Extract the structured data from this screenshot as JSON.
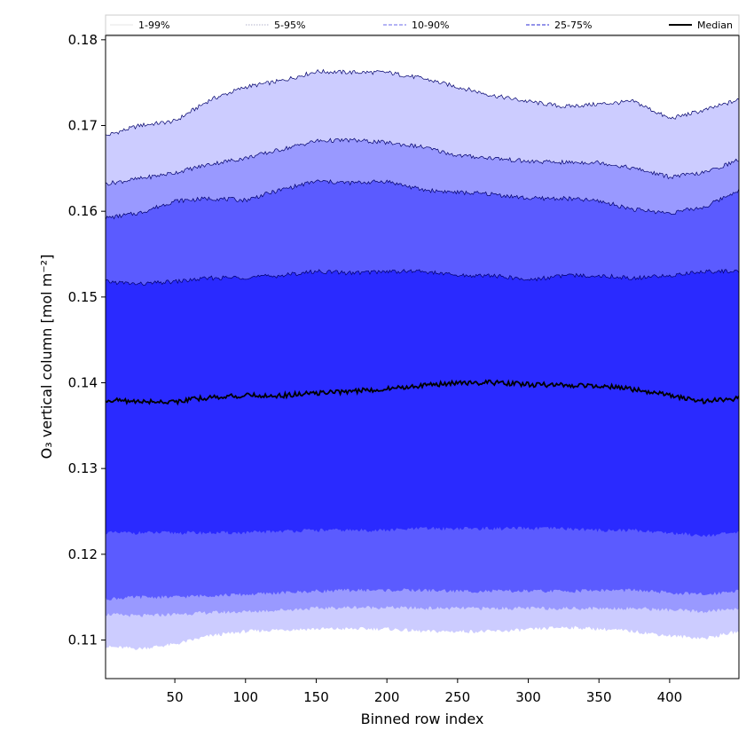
{
  "chart_data": {
    "type": "area",
    "title": "",
    "xlabel": "Binned row index",
    "ylabel": "O₃ vertical column [mol m⁻²]",
    "xlim": [
      1,
      449
    ],
    "ylim": [
      0.1055,
      0.1805
    ],
    "x_ticks": [
      50,
      100,
      150,
      200,
      250,
      300,
      350,
      400
    ],
    "y_ticks": [
      0.11,
      0.12,
      0.13,
      0.14,
      0.15,
      0.16,
      0.17,
      0.18
    ],
    "grid": false,
    "legend_position": "top",
    "colors": {
      "band_1_99": "#ccccff",
      "band_5_95": "#9999ff",
      "band_10_90": "#5b5bff",
      "band_25_75": "#2a2aff",
      "median": "#000000",
      "edge": "#00006b"
    },
    "legend": [
      {
        "label": "1-99%",
        "style": "thin-solid",
        "color": "#cccccc"
      },
      {
        "label": "5-95%",
        "style": "thin-dotted",
        "color": "#9999bb"
      },
      {
        "label": "10-90%",
        "style": "dashed",
        "color": "#8888ee"
      },
      {
        "label": "25-75%",
        "style": "dashed",
        "color": "#5555dd"
      },
      {
        "label": "Median",
        "style": "solid-thick",
        "color": "#000000"
      }
    ],
    "x": [
      1,
      25,
      50,
      75,
      100,
      125,
      150,
      175,
      200,
      225,
      250,
      275,
      300,
      325,
      350,
      375,
      400,
      425,
      449
    ],
    "series": [
      {
        "name": "1-99%",
        "upper": [
          0.1688,
          0.17,
          0.1705,
          0.173,
          0.1745,
          0.1752,
          0.1763,
          0.1762,
          0.1762,
          0.1755,
          0.1745,
          0.1735,
          0.1728,
          0.1722,
          0.1725,
          0.1728,
          0.1708,
          0.1718,
          0.173
        ],
        "lower": [
          0.1092,
          0.109,
          0.1095,
          0.1105,
          0.111,
          0.1112,
          0.1113,
          0.1113,
          0.1113,
          0.111,
          0.111,
          0.111,
          0.1112,
          0.1115,
          0.1113,
          0.111,
          0.1105,
          0.1102,
          0.111
        ]
      },
      {
        "name": "5-95%",
        "upper": [
          0.1632,
          0.1638,
          0.1645,
          0.1655,
          0.1662,
          0.1672,
          0.1682,
          0.1683,
          0.168,
          0.1675,
          0.1665,
          0.1662,
          0.1658,
          0.1657,
          0.1657,
          0.165,
          0.164,
          0.1645,
          0.166
        ],
        "lower": [
          0.113,
          0.1128,
          0.113,
          0.1132,
          0.1133,
          0.1135,
          0.1137,
          0.1138,
          0.1138,
          0.1137,
          0.1137,
          0.1137,
          0.1137,
          0.1137,
          0.1137,
          0.1137,
          0.1135,
          0.1133,
          0.1137
        ]
      },
      {
        "name": "10-90%",
        "upper": [
          0.1592,
          0.1598,
          0.1612,
          0.1615,
          0.1613,
          0.1625,
          0.1635,
          0.1633,
          0.1635,
          0.1625,
          0.1622,
          0.162,
          0.1615,
          0.1615,
          0.1612,
          0.1602,
          0.1598,
          0.1605,
          0.1625
        ],
        "lower": [
          0.1148,
          0.115,
          0.115,
          0.1152,
          0.1153,
          0.1155,
          0.1157,
          0.1158,
          0.1158,
          0.1158,
          0.1157,
          0.1157,
          0.1157,
          0.1157,
          0.1158,
          0.1158,
          0.1155,
          0.1153,
          0.1158
        ]
      },
      {
        "name": "25-75%",
        "upper": [
          0.1518,
          0.1515,
          0.1518,
          0.1522,
          0.1523,
          0.1525,
          0.153,
          0.1528,
          0.153,
          0.153,
          0.1525,
          0.1525,
          0.152,
          0.1525,
          0.1525,
          0.1522,
          0.1525,
          0.153,
          0.153
        ],
        "lower": [
          0.1225,
          0.1225,
          0.1225,
          0.1225,
          0.1225,
          0.1227,
          0.1228,
          0.1228,
          0.1228,
          0.123,
          0.123,
          0.123,
          0.123,
          0.123,
          0.1228,
          0.1228,
          0.1225,
          0.1222,
          0.1225
        ]
      },
      {
        "name": "Median",
        "values": [
          0.138,
          0.1378,
          0.1378,
          0.1383,
          0.1385,
          0.1385,
          0.1388,
          0.139,
          0.1393,
          0.1397,
          0.14,
          0.14,
          0.1398,
          0.1397,
          0.1397,
          0.1392,
          0.1385,
          0.1378,
          0.1382
        ]
      }
    ]
  }
}
